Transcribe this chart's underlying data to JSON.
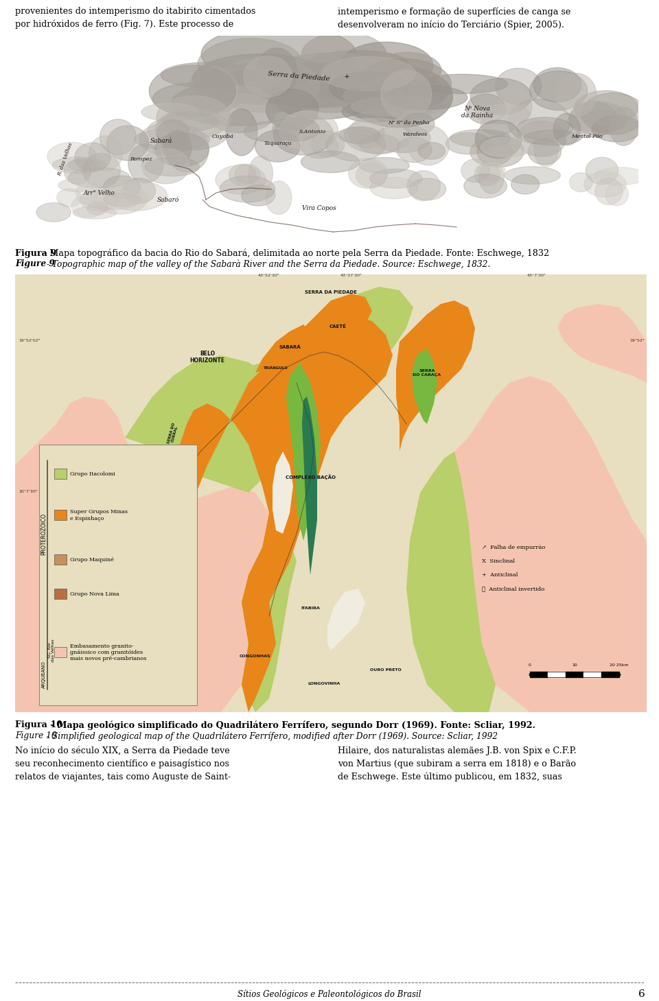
{
  "bg_color": "#ffffff",
  "page_width": 9.6,
  "page_height": 14.59,
  "top_text_left": "provenientes do intemperismo do itabirito cimentados\npor hidróxidos de ferro (Fig. 7). Este processo de",
  "top_text_right": "intemperismo e formação de superfícies de canga se\ndesenvolveram no início do Terciário (Spier, 2005).",
  "fig9_caption_bold": "Figura 9",
  "fig9_caption_rest": " - Mapa topográfico da bacia do Rio do Sabará, delimitada ao norte pela Serra da Piedade. Fonte: Eschwege, 1832",
  "fig9_caption_en": "Figure 9",
  "fig9_caption_en_rest": " - Topographic map of the valley of the Sabarà River and the Serra da Piedade. Source: Eschwege, 1832.",
  "fig10_caption_bold": "Figura 10",
  "fig10_caption_rest": " - Mapa geológico simplificado do Quadrilátero Ferrífero, segundo Dorr (1969). Fonte: Scliar, 1992.",
  "fig10_caption_en": "Figure 10",
  "fig10_caption_en_rest": " - Simplified geological map of the Quadrilátero Ferrífero, modified after Dorr (1969). Source: Scliar, 1992",
  "bottom_text_left": "No início do século XIX, a Serra da Piedade teve\nseu reconhecimento científico e paisagístico nos\nrelatos de viajantes, tais como Auguste de Saint-",
  "bottom_text_right": "Hilaire, dos naturalistas alemães J.B. von Spix e C.F.P.\nvon Martius (que subiram a serra em 1818) e o Barão\nde Eschwege. Este último publicou, em 1832, suas",
  "footer_text": "Sítios Geológicos e Paleontológicos do Brasil",
  "page_number": "6",
  "map1_bg": "#ffffff",
  "map2_bg": "#e8dfc0",
  "color_pink": "#f5c4b0",
  "color_orange": "#e8861a",
  "color_light_green": "#c8d87a",
  "color_teal": "#3a8a5a",
  "color_pale_green": "#a8c870",
  "color_white_cream": "#f5f0e0",
  "color_dark_green": "#6ab050"
}
